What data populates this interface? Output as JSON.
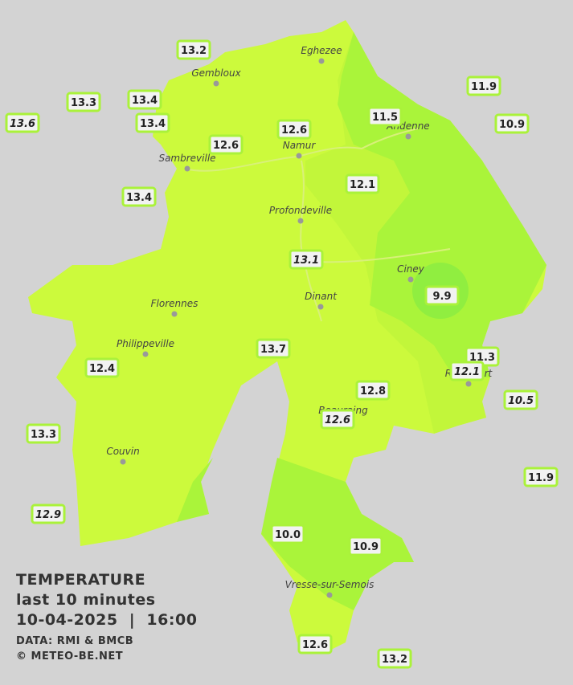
{
  "title": "TEMPERATURE",
  "subtitle": "last 10 minutes",
  "datetime": "10-04-2025  |  16:00",
  "source": "DATA: RMI & BMCB",
  "credit": "© METEO-BE.NET",
  "places": [
    "Eghezee",
    "Gembloux",
    "Andenne",
    "Namur",
    "Sambreville",
    "Profondeville",
    "Ciney",
    "Dinant",
    "Florennes",
    "Philippeville",
    "Rochefort",
    "Beauraing",
    "Couvin",
    "Vresse-sur-Semois"
  ],
  "readings": [
    "13.2",
    "13.3",
    "13.4",
    "13.6",
    "13.4",
    "12.6",
    "12.6",
    "11.5",
    "11.9",
    "10.9",
    "12.1",
    "13.4",
    "13.1",
    "9.9",
    "13.7",
    "11.3",
    "12.1",
    "12.4",
    "12.8",
    "10.5",
    "12.6",
    "13.3",
    "11.9",
    "12.9",
    "10.0",
    "10.9",
    "12.6",
    "13.2"
  ]
}
